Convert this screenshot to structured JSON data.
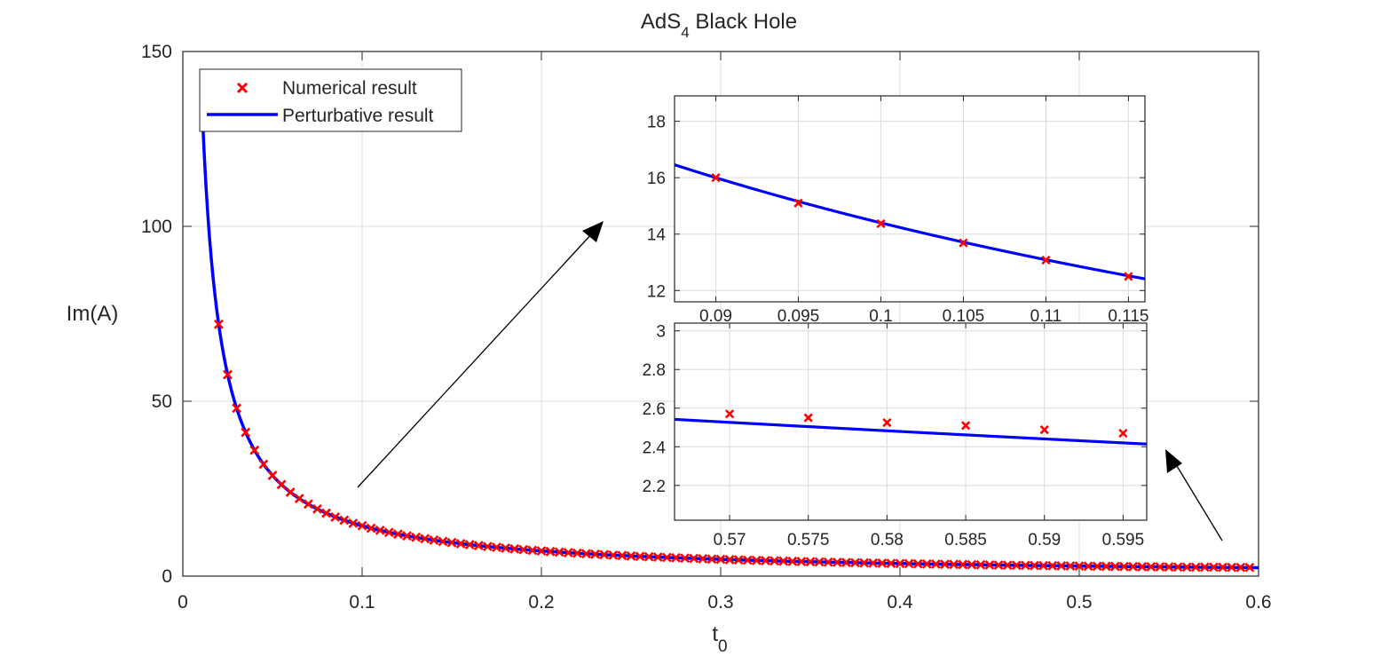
{
  "chart_data": [
    {
      "id": "main",
      "type": "line",
      "title_main": "AdS",
      "title_sub": "4",
      "title_rest": " Black Hole",
      "xlabel_main": "t",
      "xlabel_sub": "0",
      "ylabel": "Im(A)",
      "xlim": [
        0,
        0.6
      ],
      "ylim": [
        0,
        150
      ],
      "xticks": [
        0,
        0.1,
        0.2,
        0.3,
        0.4,
        0.5,
        0.6
      ],
      "xtick_labels": [
        "0",
        "0.1",
        "0.2",
        "0.3",
        "0.4",
        "0.5",
        "0.6"
      ],
      "yticks": [
        0,
        50,
        100,
        150
      ],
      "ytick_labels": [
        "0",
        "50",
        "100",
        "150"
      ],
      "grid": true,
      "legend_position": "top-left",
      "series": [
        {
          "name": "Numerical result",
          "kind": "markers",
          "marker": "x",
          "color": "#ff0000",
          "x": [
            0.02,
            0.025,
            0.03,
            0.035,
            0.04,
            0.045,
            0.05,
            0.055,
            0.06,
            0.065,
            0.07,
            0.075,
            0.08,
            0.085,
            0.09,
            0.095,
            0.1,
            0.105,
            0.11,
            0.115,
            0.12,
            0.125,
            0.13,
            0.135,
            0.14,
            0.145,
            0.15,
            0.155,
            0.16,
            0.165,
            0.17,
            0.175,
            0.18,
            0.185,
            0.19,
            0.195,
            0.2,
            0.205,
            0.21,
            0.215,
            0.22,
            0.225,
            0.23,
            0.235,
            0.24,
            0.245,
            0.25,
            0.255,
            0.26,
            0.265,
            0.27,
            0.275,
            0.28,
            0.285,
            0.29,
            0.295,
            0.3,
            0.305,
            0.31,
            0.315,
            0.32,
            0.325,
            0.33,
            0.335,
            0.34,
            0.345,
            0.35,
            0.355,
            0.36,
            0.365,
            0.37,
            0.375,
            0.38,
            0.385,
            0.39,
            0.395,
            0.4,
            0.405,
            0.41,
            0.415,
            0.42,
            0.425,
            0.43,
            0.435,
            0.44,
            0.445,
            0.45,
            0.455,
            0.46,
            0.465,
            0.47,
            0.475,
            0.48,
            0.485,
            0.49,
            0.495,
            0.5,
            0.505,
            0.51,
            0.515,
            0.52,
            0.525,
            0.53,
            0.535,
            0.54,
            0.545,
            0.55,
            0.555,
            0.56,
            0.565,
            0.57,
            0.575,
            0.58,
            0.585,
            0.59,
            0.595
          ],
          "y": [
            72.0,
            57.6,
            48.0,
            41.1,
            36.0,
            32.0,
            28.8,
            26.2,
            24.0,
            22.2,
            20.6,
            19.2,
            18.0,
            16.9,
            16.0,
            15.1,
            14.4,
            13.7,
            13.1,
            12.5,
            12.0,
            11.5,
            11.1,
            10.7,
            10.3,
            9.93,
            9.6,
            9.29,
            9.0,
            8.73,
            8.47,
            8.23,
            8.0,
            7.78,
            7.58,
            7.38,
            7.2,
            7.02,
            6.86,
            6.7,
            6.55,
            6.4,
            6.26,
            6.13,
            6.0,
            5.88,
            5.76,
            5.65,
            5.54,
            5.43,
            5.33,
            5.24,
            5.14,
            5.05,
            4.97,
            4.88,
            4.8,
            4.72,
            4.65,
            4.57,
            4.5,
            4.43,
            4.36,
            4.3,
            4.24,
            4.17,
            4.11,
            4.06,
            4.0,
            3.95,
            3.89,
            3.84,
            3.79,
            3.74,
            3.69,
            3.65,
            3.6,
            3.56,
            3.51,
            3.47,
            3.43,
            3.39,
            3.35,
            3.31,
            3.27,
            3.24,
            3.2,
            3.16,
            3.13,
            3.1,
            3.06,
            3.03,
            3.0,
            2.97,
            2.94,
            2.91,
            2.88,
            2.85,
            2.82,
            2.8,
            2.77,
            2.74,
            2.72,
            2.69,
            2.67,
            2.64,
            2.62,
            2.6,
            2.57,
            2.55,
            2.57,
            2.55,
            2.53,
            2.51,
            2.49,
            2.47
          ]
        },
        {
          "name": "Perturbative result",
          "kind": "line",
          "color": "#0000ff",
          "formula": "y = 1.44 / x",
          "x_range": [
            0.01,
            0.6
          ],
          "y_at": {
            "0.01": 144,
            "0.1": 14.4,
            "0.6": 2.4
          }
        }
      ]
    },
    {
      "id": "inset-top",
      "type": "line",
      "xlim": [
        0.0875,
        0.116
      ],
      "ylim": [
        11.6,
        18.9
      ],
      "xticks": [
        0.09,
        0.095,
        0.1,
        0.105,
        0.11,
        0.115
      ],
      "xtick_labels": [
        "0.09",
        "0.095",
        "0.1",
        "0.105",
        "0.11",
        "0.115"
      ],
      "yticks": [
        12,
        14,
        16,
        18
      ],
      "ytick_labels": [
        "12",
        "14",
        "16",
        "18"
      ],
      "grid": true,
      "series": [
        {
          "name": "Numerical result",
          "kind": "markers",
          "marker": "x",
          "color": "#ff0000",
          "x": [
            0.09,
            0.095,
            0.1,
            0.105,
            0.11,
            0.115
          ],
          "y": [
            16.0,
            15.1,
            14.37,
            13.69,
            13.08,
            12.5
          ]
        },
        {
          "name": "Perturbative result",
          "kind": "line",
          "color": "#0000ff",
          "formula": "y = 1.44 / x",
          "x_range": [
            0.0875,
            0.116
          ]
        }
      ]
    },
    {
      "id": "inset-bottom",
      "type": "line",
      "xlim": [
        0.5665,
        0.5965
      ],
      "ylim": [
        2.02,
        3.04
      ],
      "xticks": [
        0.57,
        0.575,
        0.58,
        0.585,
        0.59,
        0.595
      ],
      "xtick_labels": [
        "0.57",
        "0.575",
        "0.58",
        "0.585",
        "0.59",
        "0.595"
      ],
      "yticks": [
        2.2,
        2.4,
        2.6,
        2.8,
        3
      ],
      "ytick_labels": [
        "2.2",
        "2.4",
        "2.6",
        "2.8",
        "3"
      ],
      "grid": true,
      "series": [
        {
          "name": "Numerical result",
          "kind": "markers",
          "marker": "x",
          "color": "#ff0000",
          "x": [
            0.57,
            0.575,
            0.58,
            0.585,
            0.59,
            0.595
          ],
          "y": [
            2.57,
            2.55,
            2.525,
            2.51,
            2.488,
            2.47
          ]
        },
        {
          "name": "Perturbative result",
          "kind": "line",
          "color": "#0000ff",
          "formula": "y = 1.44 / x",
          "x_range": [
            0.5665,
            0.5965
          ]
        }
      ]
    }
  ],
  "legend": {
    "items": [
      {
        "label": "Numerical result",
        "marker": "x",
        "color": "#ff0000"
      },
      {
        "label": "Perturbative result",
        "marker": "line",
        "color": "#0000ff"
      }
    ]
  },
  "colors": {
    "numerical": "#ff0000",
    "perturbative": "#0000ff",
    "axis": "#262626",
    "grid": "#dcdcdc"
  }
}
